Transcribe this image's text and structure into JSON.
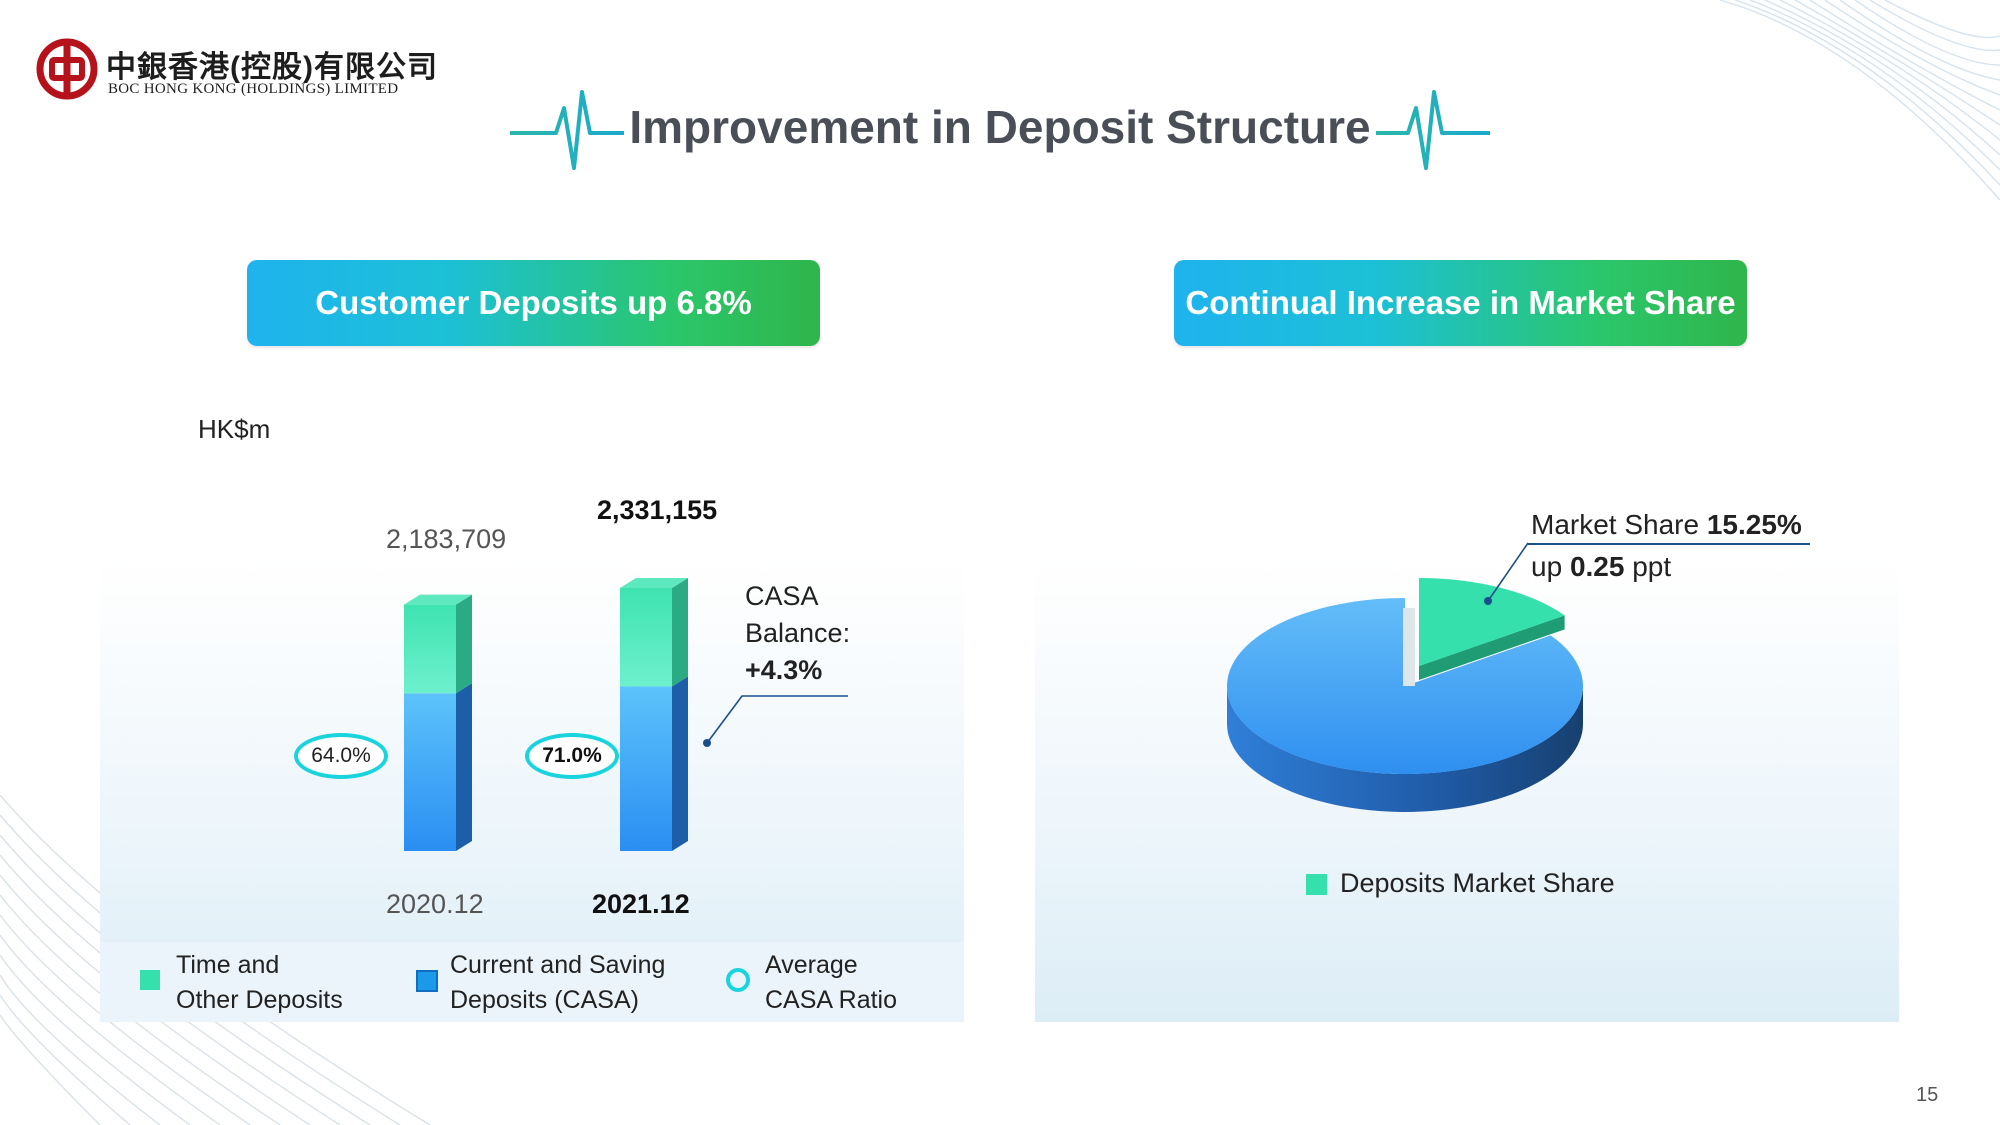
{
  "header": {
    "logo_cn": "中銀香港(控股)有限公司",
    "logo_en": "BOC HONG KONG (HOLDINGS) LIMITED",
    "title": "Improvement in Deposit Structure"
  },
  "left_section": {
    "banner": "Customer Deposits up 6.8%",
    "unit": "HK$m",
    "casa_note_line1": "CASA",
    "casa_note_line2": "Balance:",
    "casa_note_value": "+4.3%",
    "legend": {
      "time_line1": "Time and",
      "time_line2": "Other Deposits",
      "casa_line1": "Current and Saving",
      "casa_line2": "Deposits (CASA)",
      "ratio_line1": "Average",
      "ratio_line2": "CASA Ratio"
    }
  },
  "right_section": {
    "banner": "Continual Increase in Market Share",
    "label_prefix": "Market Share ",
    "label_value": "15.25%",
    "sub_prefix": "up ",
    "sub_value": "0.25",
    "sub_suffix": " ppt",
    "legend": "Deposits Market Share"
  },
  "chart_data": [
    {
      "type": "bar",
      "stacked": true,
      "categories": [
        "2020.12",
        "2021.12"
      ],
      "totals_labels": [
        "2,183,709",
        "2,331,155"
      ],
      "totals": [
        2183709,
        2331155
      ],
      "series": [
        {
          "name": "Current and Saving Deposits (CASA)",
          "color": "#2a9cf0",
          "values": [
            1398000,
            1458000
          ]
        },
        {
          "name": "Time and Other Deposits",
          "color": "#3ee3b0",
          "values": [
            785709,
            873155
          ]
        }
      ],
      "ratio_series": {
        "name": "Average CASA Ratio",
        "labels": [
          "64.0%",
          "71.0%"
        ],
        "values": [
          64.0,
          71.0
        ]
      },
      "ylabel": "HK$m"
    },
    {
      "type": "pie",
      "slices": [
        {
          "name": "Deposits Market Share",
          "value": 15.25,
          "color": "#36e0ac"
        },
        {
          "name": "",
          "value": 84.75,
          "color": "#3aa5f5"
        }
      ]
    }
  ],
  "page_number": "15"
}
